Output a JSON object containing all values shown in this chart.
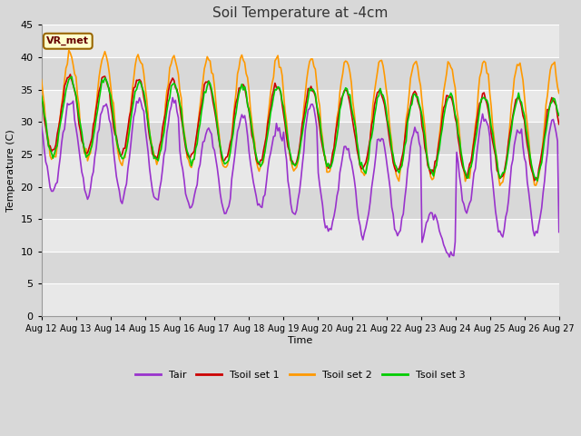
{
  "title": "Soil Temperature at -4cm",
  "xlabel": "Time",
  "ylabel": "Temperature (C)",
  "ylim": [
    0,
    45
  ],
  "yticks": [
    0,
    5,
    10,
    15,
    20,
    25,
    30,
    35,
    40,
    45
  ],
  "date_labels": [
    "Aug 12",
    "Aug 13",
    "Aug 14",
    "Aug 15",
    "Aug 16",
    "Aug 17",
    "Aug 18",
    "Aug 19",
    "Aug 20",
    "Aug 21",
    "Aug 22",
    "Aug 23",
    "Aug 24",
    "Aug 25",
    "Aug 26",
    "Aug 27"
  ],
  "bg_color": "#d8d8d8",
  "plot_bg_color_light": "#e8e8e8",
  "plot_bg_color_dark": "#d0d0d0",
  "grid_color": "#ffffff",
  "colors": {
    "Tair": "#9933cc",
    "Tsoil_set1": "#cc0000",
    "Tsoil_set2": "#ff9900",
    "Tsoil_set3": "#00cc00"
  },
  "annotation_text": "VR_met",
  "annotation_bg": "#ffffcc",
  "annotation_border": "#996600",
  "legend_labels": [
    "Tair",
    "Tsoil set 1",
    "Tsoil set 2",
    "Tsoil set 3"
  ]
}
